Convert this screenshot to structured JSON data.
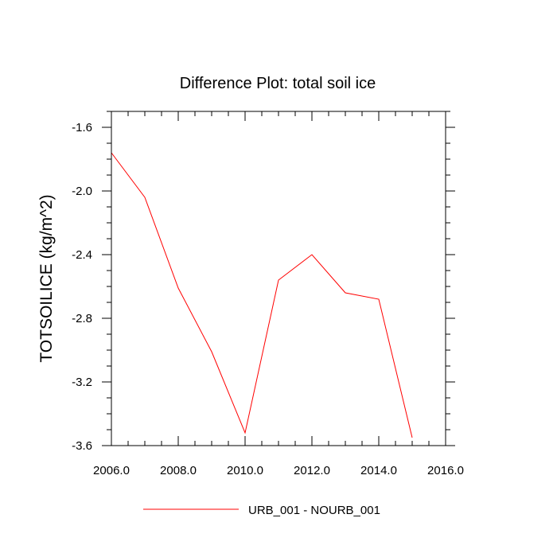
{
  "chart_data": {
    "type": "line",
    "title": "Difference Plot: total soil ice",
    "xlabel": "",
    "ylabel": "TOTSOILICE  (kg/m^2)",
    "xlim": [
      2006,
      2016
    ],
    "ylim": [
      -3.6,
      -1.5
    ],
    "x_ticks": [
      2006,
      2008,
      2010,
      2012,
      2014,
      2016
    ],
    "x_tick_labels": [
      "2006.0",
      "2008.0",
      "2010.0",
      "2012.0",
      "2014.0",
      "2016.0"
    ],
    "y_ticks": [
      -1.6,
      -2.0,
      -2.4,
      -2.8,
      -3.2,
      -3.6
    ],
    "y_tick_labels": [
      "-1.6",
      "-2.0",
      "-2.4",
      "-2.8",
      "-3.2",
      "-3.6"
    ],
    "grid": false,
    "legend_position": "bottom-center",
    "series": [
      {
        "name": "URB_001 - NOURB_001",
        "color": "#ff0000",
        "x": [
          2006,
          2007,
          2008,
          2009,
          2010,
          2011,
          2012,
          2013,
          2014,
          2015
        ],
        "y": [
          -1.76,
          -2.04,
          -2.61,
          -3.01,
          -3.52,
          -2.56,
          -2.4,
          -2.64,
          -2.68,
          -3.55
        ]
      }
    ]
  }
}
